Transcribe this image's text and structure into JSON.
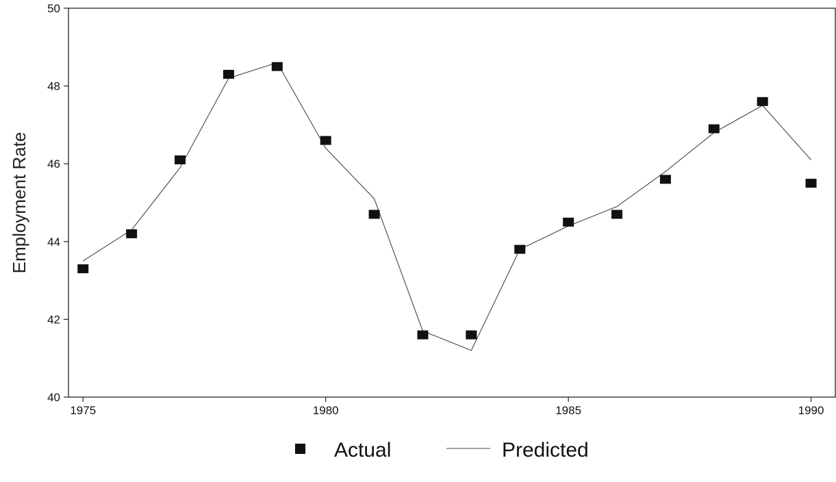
{
  "chart_data": {
    "type": "line",
    "xlabel": "",
    "ylabel": "Employment Rate",
    "xlim": [
      1974.7,
      1990.5
    ],
    "ylim": [
      40,
      50
    ],
    "x_ticks": [
      1975,
      1980,
      1985,
      1990
    ],
    "y_ticks": [
      40,
      42,
      44,
      46,
      48,
      50
    ],
    "grid": false,
    "legend_position": "bottom-center",
    "x": [
      1975,
      1976,
      1977,
      1978,
      1979,
      1980,
      1981,
      1982,
      1983,
      1984,
      1985,
      1986,
      1987,
      1988,
      1989,
      1990
    ],
    "series": [
      {
        "name": "Actual",
        "style": "markers",
        "marker": "square",
        "color": "#111111",
        "values": [
          43.3,
          44.2,
          46.1,
          48.3,
          48.5,
          46.6,
          44.7,
          41.6,
          41.6,
          43.8,
          44.5,
          44.7,
          45.6,
          46.9,
          47.6,
          45.5
        ]
      },
      {
        "name": "Predicted",
        "style": "line",
        "color": "#444444",
        "values": [
          43.5,
          44.3,
          45.9,
          48.2,
          48.6,
          46.4,
          45.1,
          41.7,
          41.2,
          43.8,
          44.4,
          44.9,
          45.8,
          46.8,
          47.5,
          46.1
        ]
      }
    ]
  }
}
